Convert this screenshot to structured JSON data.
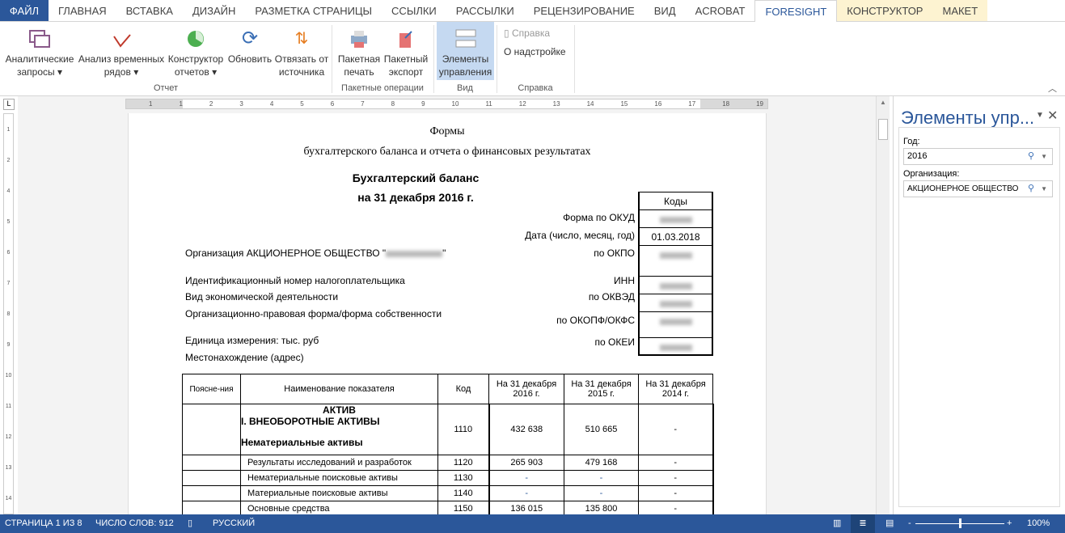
{
  "tabs": [
    "ФАЙЛ",
    "ГЛАВНАЯ",
    "ВСТАВКА",
    "ДИЗАЙН",
    "РАЗМЕТКА СТРАНИЦЫ",
    "ССЫЛКИ",
    "РАССЫЛКИ",
    "РЕЦЕНЗИРОВАНИЕ",
    "ВИД",
    "ACROBAT",
    "FORESIGHT",
    "КОНСТРУКТОР",
    "МАКЕТ"
  ],
  "ribbon": {
    "analytic": [
      "Аналитические",
      "запросы"
    ],
    "timeseries": [
      "Анализ временных",
      "рядов"
    ],
    "constructor": [
      "Конструктор",
      "отчетов"
    ],
    "refresh": "Обновить",
    "unbind": [
      "Отвязать от",
      "источника"
    ],
    "batch_print": [
      "Пакетная",
      "печать"
    ],
    "batch_export": [
      "Пакетный",
      "экспорт"
    ],
    "controls": [
      "Элементы",
      "управления"
    ],
    "help": "Справка",
    "about": "О надстройке",
    "groups": [
      "Отчет",
      "Пакетные операции",
      "Вид",
      "Справка"
    ]
  },
  "ruler": [
    "1",
    "1",
    "2",
    "3",
    "4",
    "5",
    "6",
    "7",
    "8",
    "9",
    "10",
    "11",
    "12",
    "13",
    "14",
    "15",
    "16",
    "17",
    "18",
    "19"
  ],
  "vruler": [
    "1",
    "2",
    "1",
    "4",
    "5",
    "6",
    "7",
    "8",
    "9",
    "10",
    "11",
    "12",
    "13",
    "14"
  ],
  "doc": {
    "t1": "Формы",
    "t2": "бухгалтерского баланса и отчета о финансовых результатах",
    "title": "Бухгалтерский баланс",
    "date": "на 31 декабря 2016 г.",
    "codes_header": "Коды",
    "code_labels": [
      "Форма по ОКУД",
      "Дата (число, месяц, год)",
      "по ОКПО",
      "ИНН",
      "по ОКВЭД",
      "по ОКОПФ/ОКФС",
      "по ОКЕИ"
    ],
    "date_code": "01.03.2018",
    "org": "Организация АКЦИОНЕРНОЕ ОБЩЕСТВО \"",
    "org_end": "\"",
    "inn": "Идентификационный номер налогоплательщика",
    "activity": "Вид экономической деятельности",
    "legal": "Организационно-правовая форма/форма собственности",
    "unit": "Единица измерения: тыс. руб",
    "address": "Местонахождение (адрес)"
  },
  "table": {
    "headers": [
      "Поясне-ния",
      "Наименование показателя",
      "Код",
      "На 31 декабря 2016 г.",
      "На 31 декабря 2015 г.",
      "На 31 декабря 2014 г."
    ],
    "section": [
      "АКТИВ",
      "I. ВНЕОБОРОТНЫЕ АКТИВЫ",
      "Нематериальные активы"
    ],
    "rows": [
      {
        "name": "",
        "code": "1110",
        "v1": "432 638",
        "v2": "510 665",
        "v3": "-"
      },
      {
        "name": "Результаты исследований и разработок",
        "code": "1120",
        "v1": "265 903",
        "v2": "479 168",
        "v3": "-"
      },
      {
        "name": "Нематериальные поисковые активы",
        "code": "1130",
        "v1": "-",
        "v2": "-",
        "v3": "-"
      },
      {
        "name": "Материальные поисковые активы",
        "code": "1140",
        "v1": "-",
        "v2": "-",
        "v3": "-"
      },
      {
        "name": "Основные средства",
        "code": "1150",
        "v1": "136 015",
        "v2": "135 800",
        "v3": "-"
      }
    ]
  },
  "pane": {
    "title": "Элементы упр...",
    "year_label": "Год:",
    "year": "2016",
    "org_label": "Организация:",
    "org": "АКЦИОНЕРНОЕ ОБЩЕСТВО"
  },
  "status": {
    "page": "СТРАНИЦА 1 ИЗ 8",
    "words": "ЧИСЛО СЛОВ: 912",
    "lang": "РУССКИЙ",
    "zoom": "100%"
  },
  "colors": {
    "accent": "#2b579a",
    "highlight": "#c5d9f1"
  }
}
